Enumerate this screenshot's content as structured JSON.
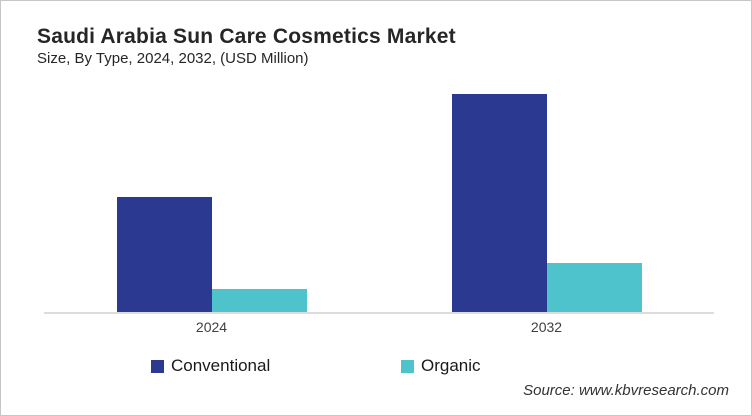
{
  "header": {
    "title": "Saudi Arabia Sun Care Cosmetics Market",
    "subtitle": "Size, By Type, 2024, 2032, (USD Million)"
  },
  "chart_data": {
    "type": "bar",
    "title": "Saudi Arabia Sun Care Cosmetics Market Size, By Type, 2024, 2032, (USD Million)",
    "categories": [
      "2024",
      "2032"
    ],
    "series": [
      {
        "name": "Conventional",
        "color": "#2B3A90",
        "values": [
          115,
          218
        ]
      },
      {
        "name": "Organic",
        "color": "#4FC3CC",
        "values": [
          23,
          49
        ]
      }
    ],
    "xlabel": "",
    "ylabel": "",
    "ylim": [
      0,
      230
    ],
    "y_axis_shown": false,
    "grid": false,
    "legend_position": "bottom",
    "note": "no y-axis labels in chart; values are estimated relative units read from bar heights"
  },
  "footer": {
    "source": "Source: www.kbvresearch.com"
  }
}
